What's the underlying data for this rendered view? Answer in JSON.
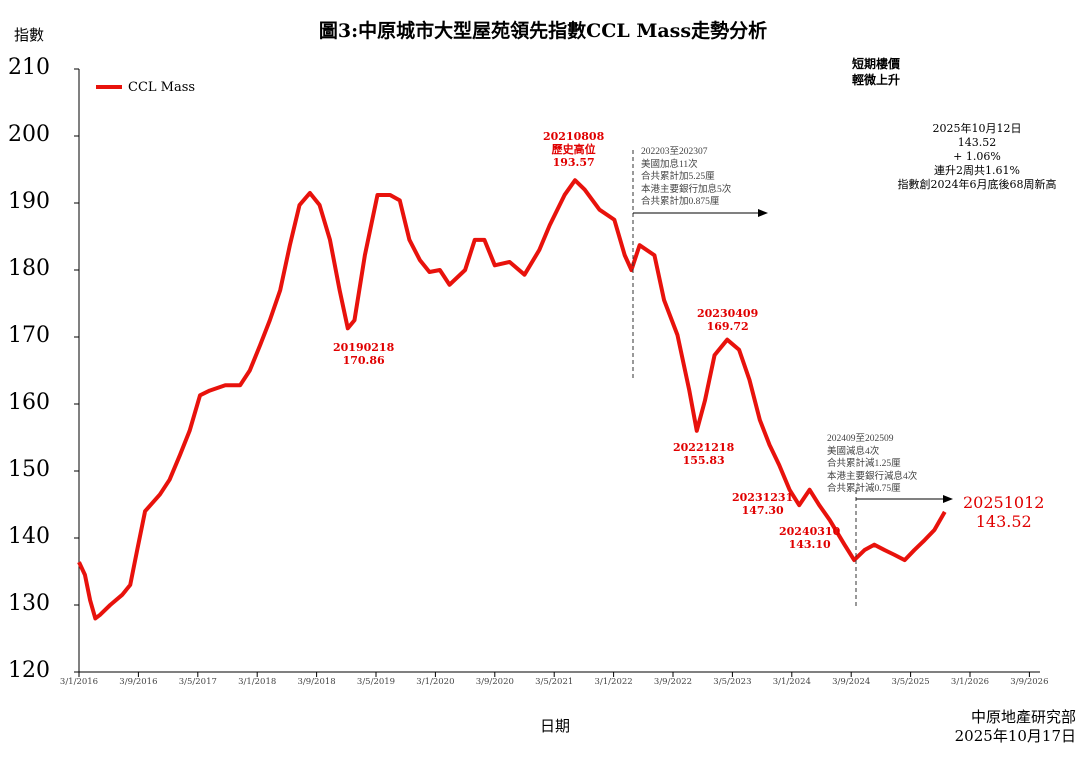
{
  "chart_data": {
    "type": "line",
    "title": "圖3:中原城市大型屋苑領先指數CCL Mass走勢分析",
    "ylabel": "指數",
    "xlabel": "日期",
    "ylim": [
      120,
      210
    ],
    "yticks": [
      "120",
      "130",
      "140",
      "150",
      "160",
      "170",
      "180",
      "190",
      "200",
      "210"
    ],
    "x_unit": "months since Jan 2016",
    "xticks": [
      "3/1/2016",
      "3/9/2016",
      "3/5/2017",
      "3/1/2018",
      "3/9/2018",
      "3/5/2019",
      "3/1/2020",
      "3/9/2020",
      "3/5/2021",
      "3/1/2022",
      "3/9/2022",
      "3/5/2023",
      "3/1/2024",
      "3/9/2024",
      "3/5/2025",
      "3/1/2026",
      "3/9/2026"
    ],
    "legend": {
      "label": "CCL Mass",
      "placement": "top-left"
    },
    "series": [
      {
        "name": "CCL Mass",
        "color": "#e8120c",
        "x": [
          0,
          0.8,
          1.5,
          2.2,
          2.8,
          4.2,
          5.8,
          6.9,
          7.8,
          8.9,
          10.9,
          12.2,
          13.6,
          14.9,
          16.3,
          17.6,
          19.7,
          21.7,
          23,
          24.4,
          25.7,
          27.1,
          28.4,
          29.7,
          31.1,
          32.4,
          33.8,
          35.1,
          36.2,
          37.1,
          38.5,
          40.2,
          41.9,
          43.2,
          44.5,
          45.9,
          47.2,
          48.6,
          49.9,
          52,
          53.3,
          54.6,
          56,
          58,
          60,
          62,
          63.4,
          65.4,
          66.8,
          68.1,
          70.1,
          72.1,
          73.5,
          74.4,
          75.5,
          77.5,
          78.8,
          80.6,
          82.2,
          83.2,
          84.3,
          85.6,
          87.3,
          88.9,
          90.3,
          91.7,
          93,
          94.3,
          95.7,
          97,
          98.4,
          99.7,
          101.1,
          103.1,
          104.4,
          105.8,
          107.1,
          108.5,
          109.8,
          111.2,
          112.5,
          113.9,
          115.2,
          116.6
        ],
        "y": [
          136.4,
          134.5,
          130.7,
          128,
          128.5,
          130,
          131.5,
          133,
          138,
          144,
          146.5,
          148.7,
          152.4,
          156,
          161.3,
          162,
          162.8,
          162.8,
          165,
          168.8,
          172.5,
          177,
          183.7,
          189.7,
          191.5,
          189.7,
          184.5,
          177,
          171.3,
          172.5,
          182.2,
          191.2,
          191.2,
          190.4,
          184.5,
          181.5,
          179.7,
          180,
          177.8,
          180,
          184.5,
          184.5,
          180.7,
          181.2,
          179.3,
          183,
          186.7,
          191.2,
          193.4,
          192,
          189,
          187.5,
          182.2,
          180,
          183.7,
          182.2,
          175.5,
          170.3,
          162,
          156,
          160.5,
          167.3,
          169.6,
          168.1,
          163.6,
          157.6,
          153.9,
          150.9,
          147.2,
          144.9,
          147.2,
          144.9,
          142.7,
          139,
          136.7,
          138.2,
          139,
          138.2,
          137.5,
          136.7,
          138.2,
          139.7,
          141.2,
          143.9
        ]
      }
    ],
    "annotations": [
      {
        "id": "a1",
        "lines": [
          "20190218",
          "170.86"
        ]
      },
      {
        "id": "a2",
        "lines": [
          "20210808",
          "歷史高位",
          "193.57"
        ]
      },
      {
        "id": "a3",
        "lines": [
          "20230409",
          "169.72"
        ]
      },
      {
        "id": "a4",
        "lines": [
          "20221218",
          "155.83"
        ]
      },
      {
        "id": "a5",
        "lines": [
          "20231231",
          "147.30"
        ]
      },
      {
        "id": "a6",
        "lines": [
          "20240310",
          "143.10"
        ]
      },
      {
        "id": "a7",
        "lines": [
          "20251012",
          "143.52"
        ]
      }
    ],
    "notes": [
      {
        "id": "n1",
        "lines": [
          "202203至202307",
          "美國加息11次",
          "合共累計加5.25厘",
          "本港主要銀行加息5次",
          "合共累計加0.875厘"
        ]
      },
      {
        "id": "n2",
        "lines": [
          "202409至202509",
          "美國減息4次",
          "合共累計減1.25厘",
          "本港主要銀行減息4次",
          "合共累計減0.75厘"
        ]
      }
    ],
    "short_term": [
      "短期樓價",
      "輕微上升"
    ],
    "summary": [
      "2025年10月12日",
      "143.52",
      "+ 1.06%",
      "連升2周共1.61%",
      "指數創2024年6月底後68周新高"
    ]
  },
  "source": [
    "中原地產研究部",
    "2025年10月17日"
  ]
}
